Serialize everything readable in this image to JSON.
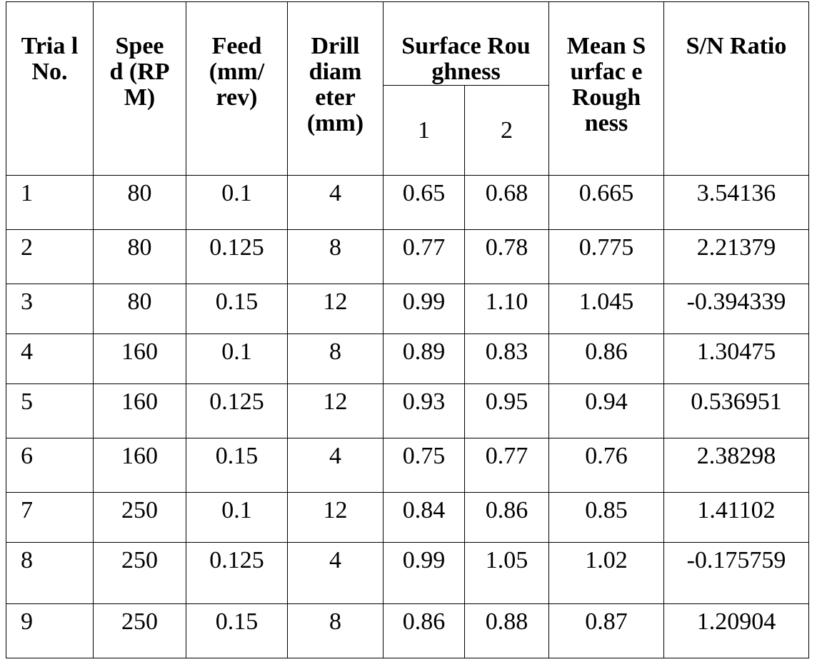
{
  "table": {
    "headers": {
      "trial": "Tria l No.",
      "speed": "Spee d (RP M)",
      "feed": "Feed (mm/ rev)",
      "drill": "Drill diam eter (mm)",
      "surface": "Surface Roughness",
      "sub1": "1",
      "sub2": "2",
      "mean": "Mean Surfac e Rough ness",
      "sn": "S/N Ratio"
    },
    "rows": [
      [
        "1",
        "80",
        "0.1",
        "4",
        "0.65",
        "0.68",
        "0.665",
        "3.54136"
      ],
      [
        "2",
        "80",
        "0.125",
        "8",
        "0.77",
        "0.78",
        "0.775",
        "2.21379"
      ],
      [
        "3",
        "80",
        "0.15",
        "12",
        "0.99",
        "1.10",
        "1.045",
        "-0.394339"
      ],
      [
        "4",
        "160",
        "0.1",
        "8",
        "0.89",
        "0.83",
        "0.86",
        "1.30475"
      ],
      [
        "5",
        "160",
        "0.125",
        "12",
        "0.93",
        "0.95",
        "0.94",
        "0.536951"
      ],
      [
        "6",
        "160",
        "0.15",
        "4",
        "0.75",
        "0.77",
        "0.76",
        "2.38298"
      ],
      [
        "7",
        "250",
        "0.1",
        "12",
        "0.84",
        "0.86",
        "0.85",
        "1.41102"
      ],
      [
        "8",
        "250",
        "0.125",
        "4",
        "0.99",
        "1.05",
        "1.02",
        "-0.175759"
      ],
      [
        "9",
        "250",
        "0.15",
        "8",
        "0.86",
        "0.88",
        "0.87",
        "1.20904"
      ]
    ]
  }
}
